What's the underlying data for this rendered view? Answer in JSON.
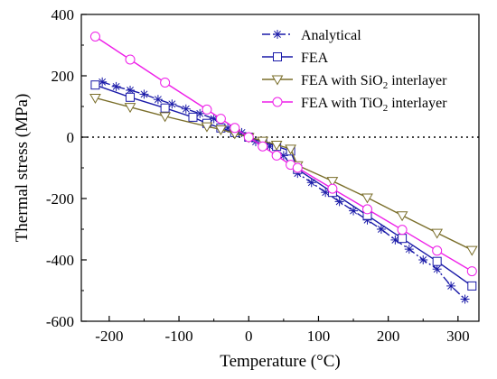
{
  "chart_data": {
    "type": "line",
    "title": "",
    "xlabel": "Temperature (°C)",
    "ylabel": "Thermal stress (MPa)",
    "xlim": [
      -240,
      330
    ],
    "ylim": [
      -600,
      400
    ],
    "xticks": [
      -200,
      -100,
      0,
      100,
      200,
      300
    ],
    "yticks": [
      -600,
      -400,
      -200,
      0,
      200,
      400
    ],
    "xtick_labels": [
      "-200",
      "-100",
      "0",
      "100",
      "200",
      "300"
    ],
    "ytick_labels": [
      "-600",
      "-400",
      "-200",
      "0",
      "200",
      "400"
    ],
    "reference_line": {
      "y": 0,
      "style": "dotted"
    },
    "grid": false,
    "legend": "top-right",
    "series": [
      {
        "name": "Analytical",
        "name_parts": [
          "Analytical",
          "",
          ""
        ],
        "marker": "asterisk",
        "line_style": "dash-dot",
        "color": "#1a1aa8",
        "points": [
          [
            -210,
            180
          ],
          [
            -190,
            165
          ],
          [
            -170,
            153
          ],
          [
            -150,
            140
          ],
          [
            -130,
            123
          ],
          [
            -110,
            108
          ],
          [
            -90,
            92
          ],
          [
            -70,
            77
          ],
          [
            -50,
            60
          ],
          [
            -30,
            30
          ],
          [
            -10,
            15
          ],
          [
            10,
            -15
          ],
          [
            30,
            -30
          ],
          [
            50,
            -60
          ],
          [
            70,
            -118
          ],
          [
            90,
            -148
          ],
          [
            110,
            -180
          ],
          [
            130,
            -210
          ],
          [
            150,
            -240
          ],
          [
            170,
            -270
          ],
          [
            190,
            -300
          ],
          [
            210,
            -335
          ],
          [
            230,
            -365
          ],
          [
            250,
            -400
          ],
          [
            270,
            -430
          ],
          [
            290,
            -485
          ],
          [
            310,
            -528
          ]
        ]
      },
      {
        "name": "FEA",
        "name_parts": [
          "FEA",
          "",
          ""
        ],
        "marker": "square",
        "line_style": "solid",
        "color": "#1a1aa8",
        "points": [
          [
            -220,
            170
          ],
          [
            -170,
            130
          ],
          [
            -120,
            95
          ],
          [
            -80,
            65
          ],
          [
            -60,
            45
          ],
          [
            -40,
            30
          ],
          [
            -20,
            15
          ],
          [
            0,
            0
          ],
          [
            20,
            -15
          ],
          [
            40,
            -30
          ],
          [
            60,
            -45
          ],
          [
            70,
            -105
          ],
          [
            120,
            -180
          ],
          [
            170,
            -255
          ],
          [
            220,
            -330
          ],
          [
            270,
            -405
          ],
          [
            320,
            -485
          ]
        ]
      },
      {
        "name": "FEA with SiO2 interlayer",
        "name_parts": [
          "FEA with SiO",
          "2",
          " interlayer"
        ],
        "marker": "triangle-down",
        "line_style": "solid",
        "color": "#7a6e2a",
        "points": [
          [
            -220,
            128
          ],
          [
            -170,
            98
          ],
          [
            -120,
            68
          ],
          [
            -60,
            35
          ],
          [
            -40,
            25
          ],
          [
            -20,
            12
          ],
          [
            0,
            0
          ],
          [
            20,
            -12
          ],
          [
            40,
            -25
          ],
          [
            60,
            -38
          ],
          [
            70,
            -92
          ],
          [
            120,
            -143
          ],
          [
            170,
            -197
          ],
          [
            220,
            -255
          ],
          [
            270,
            -312
          ],
          [
            320,
            -368
          ]
        ]
      },
      {
        "name": "FEA with TiO2 interlayer",
        "name_parts": [
          "FEA with TiO",
          "2",
          " interlayer"
        ],
        "marker": "circle",
        "line_style": "solid",
        "color": "#ee1ee8",
        "points": [
          [
            -220,
            328
          ],
          [
            -170,
            253
          ],
          [
            -120,
            178
          ],
          [
            -60,
            90
          ],
          [
            -40,
            60
          ],
          [
            -20,
            30
          ],
          [
            0,
            0
          ],
          [
            20,
            -30
          ],
          [
            40,
            -60
          ],
          [
            60,
            -90
          ],
          [
            70,
            -100
          ],
          [
            120,
            -168
          ],
          [
            170,
            -235
          ],
          [
            220,
            -302
          ],
          [
            270,
            -370
          ],
          [
            320,
            -437
          ]
        ]
      }
    ]
  }
}
